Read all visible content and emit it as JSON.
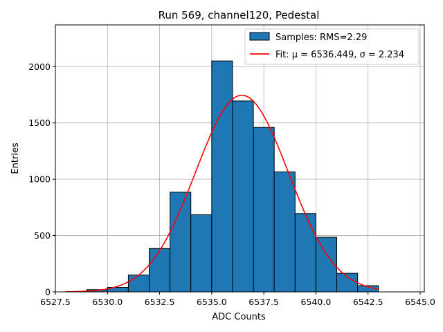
{
  "chart_data": {
    "type": "bar",
    "title": "Run 569, channel120, Pedestal",
    "xlabel": "ADC Counts",
    "ylabel": "Entries",
    "xlim": [
      6527.5,
      6545.2
    ],
    "ylim": [
      0,
      2370
    ],
    "grid": true,
    "legend_position": "top-right",
    "x_ticks": [
      6527.5,
      6530.0,
      6532.5,
      6535.0,
      6537.5,
      6540.0,
      6542.5,
      6545.0
    ],
    "x_tick_labels": [
      "6527.5",
      "6530.0",
      "6532.5",
      "6535.0",
      "6537.5",
      "6540.0",
      "6542.5",
      "6545.0"
    ],
    "y_ticks": [
      0,
      500,
      1000,
      1500,
      2000
    ],
    "y_tick_labels": [
      "0",
      "500",
      "1000",
      "1500",
      "2000"
    ],
    "histogram": {
      "bin_edges": [
        6529,
        6530,
        6531,
        6532,
        6533,
        6534,
        6535,
        6536,
        6537,
        6538,
        6539,
        6540,
        6541,
        6542,
        6543
      ],
      "counts": [
        20,
        40,
        150,
        385,
        885,
        685,
        2050,
        1695,
        1460,
        1065,
        695,
        485,
        165,
        55
      ],
      "color": "#1f77b4",
      "edge_color": "#000000",
      "legend_label": "Samples: RMS=2.29"
    },
    "fit": {
      "color": "#ff0000",
      "legend_label": "Fit: μ = 6536.449, σ = 2.234",
      "mu": 6536.449,
      "sigma": 2.234,
      "amplitude": 1745,
      "x_range": [
        6528,
        6543
      ]
    }
  }
}
